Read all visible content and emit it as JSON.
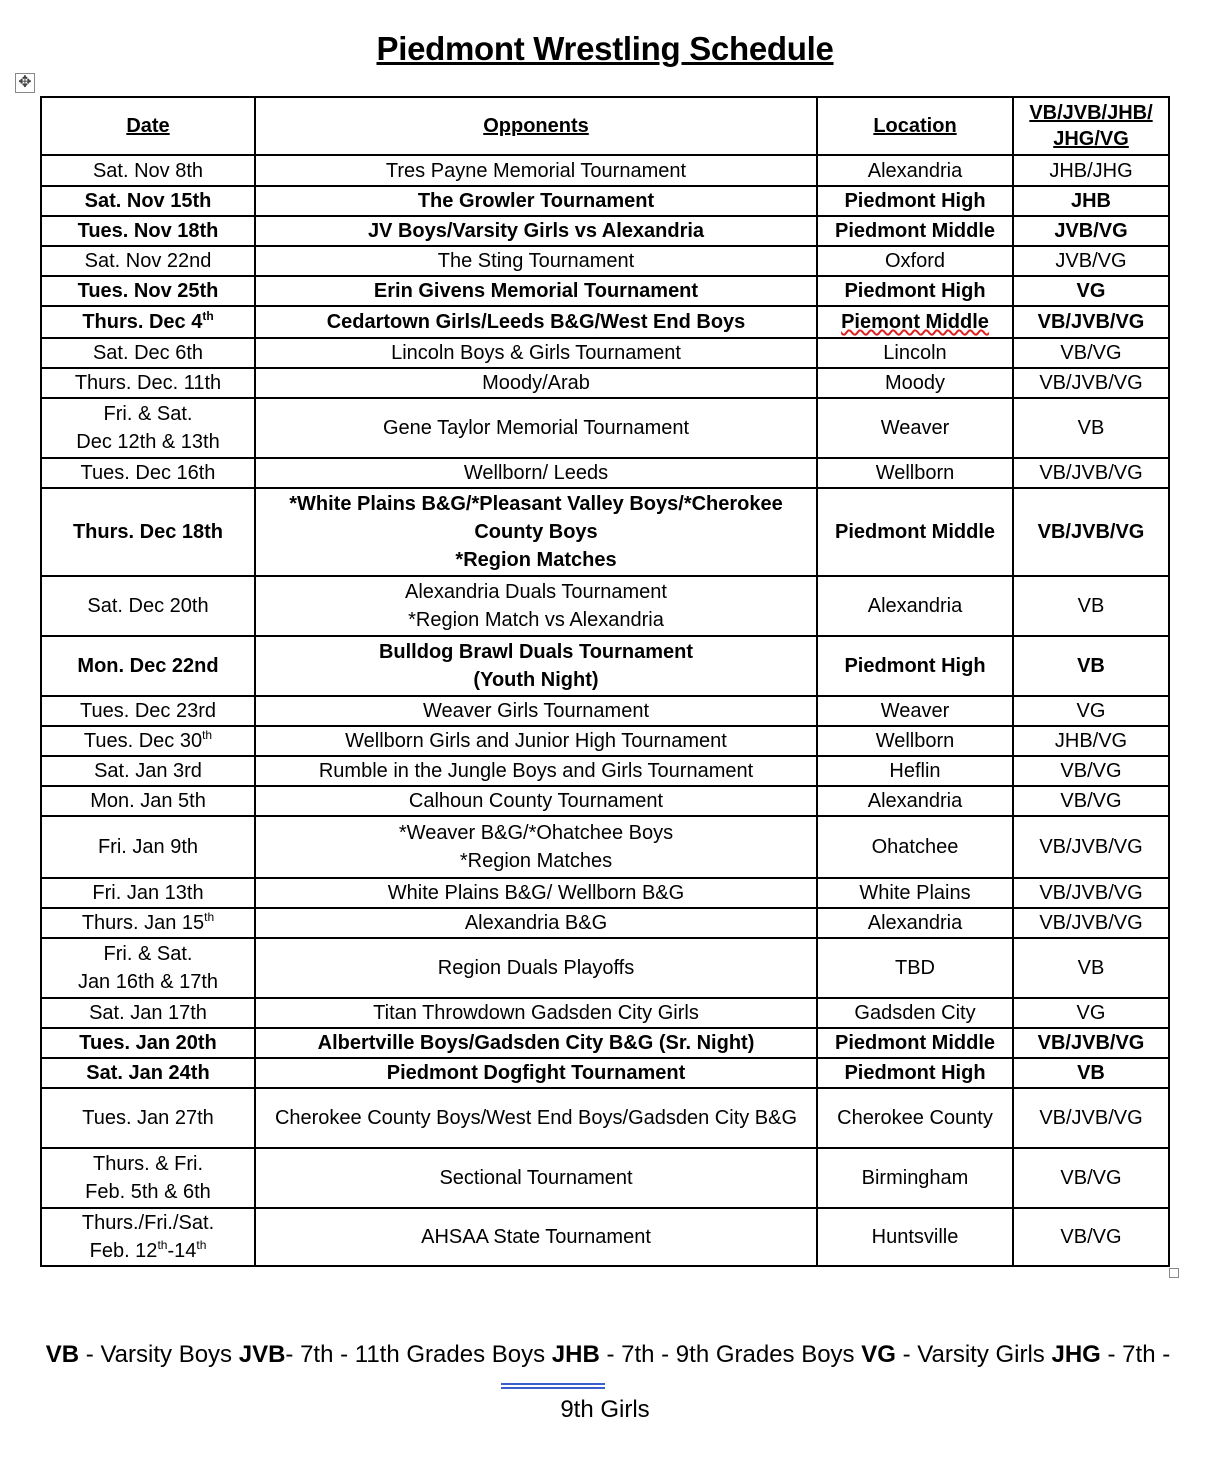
{
  "title": "Piedmont Wrestling Schedule",
  "headers": [
    "Date",
    "Opponents",
    "Location",
    "VB/JVB/JHB/ JHG/VG"
  ],
  "rows": [
    {
      "h": 31,
      "bold": false,
      "date": [
        [
          "Sat. Nov 8th"
        ]
      ],
      "opp": [
        "Tres Payne Memorial Tournament"
      ],
      "loc": "Alexandria",
      "teams": "JHB/JHG"
    },
    {
      "h": 30,
      "bold": true,
      "date": [
        [
          "Sat. Nov 15th"
        ]
      ],
      "opp": [
        "The Growler Tournament"
      ],
      "loc": "Piedmont High",
      "teams": "JHB"
    },
    {
      "h": 30,
      "bold": true,
      "date": [
        [
          "Tues. Nov 18th"
        ]
      ],
      "opp": [
        "JV Boys/Varsity Girls vs Alexandria"
      ],
      "loc": "Piedmont Middle",
      "teams": "JVB/VG"
    },
    {
      "h": 30,
      "bold": false,
      "date": [
        [
          "Sat. Nov 22nd"
        ]
      ],
      "opp": [
        "The Sting Tournament"
      ],
      "loc": "Oxford",
      "teams": "JVB/VG"
    },
    {
      "h": 30,
      "bold": true,
      "date": [
        [
          "Tues. Nov 25th"
        ]
      ],
      "opp": [
        "Erin Givens Memorial Tournament"
      ],
      "loc": "Piedmont High",
      "teams": "VG"
    },
    {
      "h": 32,
      "bold": true,
      "date": [
        [
          "Thurs. Dec 4",
          "th"
        ]
      ],
      "opp": [
        "Cedartown Girls/Leeds B&G/West End Boys"
      ],
      "loc": "Piemont Middle",
      "loc_misspelled": true,
      "teams": "VB/JVB/VG"
    },
    {
      "h": 30,
      "bold": false,
      "date": [
        [
          "Sat. Dec 6th"
        ]
      ],
      "opp": [
        "Lincoln Boys & Girls Tournament"
      ],
      "loc": "Lincoln",
      "teams": "VB/VG"
    },
    {
      "h": 30,
      "bold": false,
      "date": [
        [
          "Thurs. Dec. 11th"
        ]
      ],
      "opp": [
        "Moody/Arab"
      ],
      "loc": "Moody",
      "teams": "VB/JVB/VG"
    },
    {
      "h": 60,
      "bold": false,
      "date": [
        [
          "Fri. & Sat."
        ],
        [
          "Dec 12th & 13th"
        ]
      ],
      "opp": [
        "Gene Taylor Memorial Tournament"
      ],
      "loc": "Weaver",
      "teams": "VB"
    },
    {
      "h": 30,
      "bold": false,
      "date": [
        [
          "Tues. Dec 16th"
        ]
      ],
      "opp": [
        "Wellborn/ Leeds"
      ],
      "loc": "Wellborn",
      "teams": "VB/JVB/VG"
    },
    {
      "h": 88,
      "bold": true,
      "date": [
        [
          "Thurs. Dec 18th"
        ]
      ],
      "opp": [
        "*White Plains B&G/*Pleasant Valley Boys/*Cherokee County Boys",
        "*Region Matches"
      ],
      "loc": "Piedmont Middle",
      "teams": "VB/JVB/VG"
    },
    {
      "h": 60,
      "bold": false,
      "date": [
        [
          "Sat. Dec 20th"
        ]
      ],
      "opp": [
        "Alexandria Duals Tournament",
        "*Region Match vs Alexandria"
      ],
      "loc": "Alexandria",
      "teams": "VB"
    },
    {
      "h": 60,
      "bold": true,
      "date": [
        [
          "Mon. Dec 22nd"
        ]
      ],
      "opp": [
        "Bulldog Brawl Duals Tournament",
        "(Youth Night)"
      ],
      "loc": "Piedmont High",
      "teams": "VB"
    },
    {
      "h": 30,
      "bold": false,
      "date": [
        [
          "Tues. Dec 23rd"
        ]
      ],
      "opp": [
        "Weaver Girls Tournament"
      ],
      "loc": "Weaver",
      "teams": "VG"
    },
    {
      "h": 30,
      "bold": false,
      "date": [
        [
          "Tues. Dec 30",
          "th"
        ]
      ],
      "opp": [
        "Wellborn Girls and Junior High Tournament"
      ],
      "loc": "Wellborn",
      "teams": "JHB/VG"
    },
    {
      "h": 30,
      "bold": false,
      "date": [
        [
          "Sat. Jan 3rd"
        ]
      ],
      "opp": [
        "Rumble in the Jungle Boys and Girls Tournament"
      ],
      "loc": "Heflin",
      "teams": "VB/VG"
    },
    {
      "h": 30,
      "bold": false,
      "date": [
        [
          "Mon. Jan 5th"
        ]
      ],
      "opp": [
        "Calhoun County Tournament"
      ],
      "loc": "Alexandria",
      "teams": "VB/VG"
    },
    {
      "h": 62,
      "bold": false,
      "date": [
        [
          "Fri. Jan 9th"
        ]
      ],
      "opp": [
        "*Weaver B&G/*Ohatchee Boys",
        "*Region Matches"
      ],
      "loc": "Ohatchee",
      "teams": "VB/JVB/VG"
    },
    {
      "h": 30,
      "bold": false,
      "date": [
        [
          "Fri. Jan 13th"
        ]
      ],
      "opp": [
        "White Plains B&G/ Wellborn B&G"
      ],
      "loc": "White Plains",
      "teams": "VB/JVB/VG"
    },
    {
      "h": 30,
      "bold": false,
      "date": [
        [
          "Thurs. Jan 15",
          "th"
        ]
      ],
      "opp": [
        "Alexandria B&G"
      ],
      "loc": "Alexandria",
      "teams": "VB/JVB/VG"
    },
    {
      "h": 60,
      "bold": false,
      "date": [
        [
          "Fri. & Sat."
        ],
        [
          "Jan 16th & 17th"
        ]
      ],
      "opp": [
        "Region Duals Playoffs"
      ],
      "loc": "TBD",
      "teams": "VB"
    },
    {
      "h": 30,
      "bold": false,
      "date": [
        [
          "Sat. Jan 17th"
        ]
      ],
      "opp": [
        "Titan Throwdown Gadsden City Girls"
      ],
      "loc": "Gadsden City",
      "teams": "VG"
    },
    {
      "h": 30,
      "bold": true,
      "date": [
        [
          "Tues. Jan 20th"
        ]
      ],
      "opp": [
        "Albertville Boys/Gadsden City B&G (Sr. Night)"
      ],
      "loc": "Piedmont Middle",
      "teams": "VB/JVB/VG"
    },
    {
      "h": 30,
      "bold": true,
      "date": [
        [
          "Sat. Jan 24th"
        ]
      ],
      "opp": [
        "Piedmont Dogfight Tournament"
      ],
      "loc": "Piedmont High",
      "teams": "VB"
    },
    {
      "h": 60,
      "bold": false,
      "date": [
        [
          "Tues. Jan 27th"
        ]
      ],
      "opp": [
        "Cherokee County Boys/West End Boys/Gadsden City B&G"
      ],
      "loc": "Cherokee County",
      "teams": "VB/JVB/VG"
    },
    {
      "h": 60,
      "bold": false,
      "date": [
        [
          "Thurs. & Fri."
        ],
        [
          "Feb. 5th & 6th"
        ]
      ],
      "opp": [
        "Sectional Tournament"
      ],
      "loc": "Birmingham",
      "teams": "VB/VG"
    },
    {
      "h": 56,
      "bold": false,
      "date": [
        [
          "Thurs./Fri./Sat."
        ],
        [
          "Feb. 12",
          "th",
          "-14",
          "th"
        ]
      ],
      "opp": [
        "AHSAA State Tournament"
      ],
      "loc": "Huntsville",
      "teams": "VB/VG"
    }
  ],
  "legend": {
    "items": [
      {
        "abbr": "VB",
        "sep": " - ",
        "desc": "Varsity Boys"
      },
      {
        "abbr": "JVB",
        "sep": "- ",
        "desc": "7th - 11th Grades Boys"
      },
      {
        "abbr": "JHB",
        "sep": " - ",
        "desc": "7th - 9th Grades Boys"
      },
      {
        "abbr": "VG",
        "sep": " - ",
        "desc": "Varsity Girls"
      },
      {
        "abbr": "JHG",
        "sep": " - ",
        "desc": "7th -"
      }
    ],
    "continuation": "9th Girls"
  },
  "colors": {
    "spellcheck": "#d22222",
    "link_underline": "#3a5fcd"
  }
}
